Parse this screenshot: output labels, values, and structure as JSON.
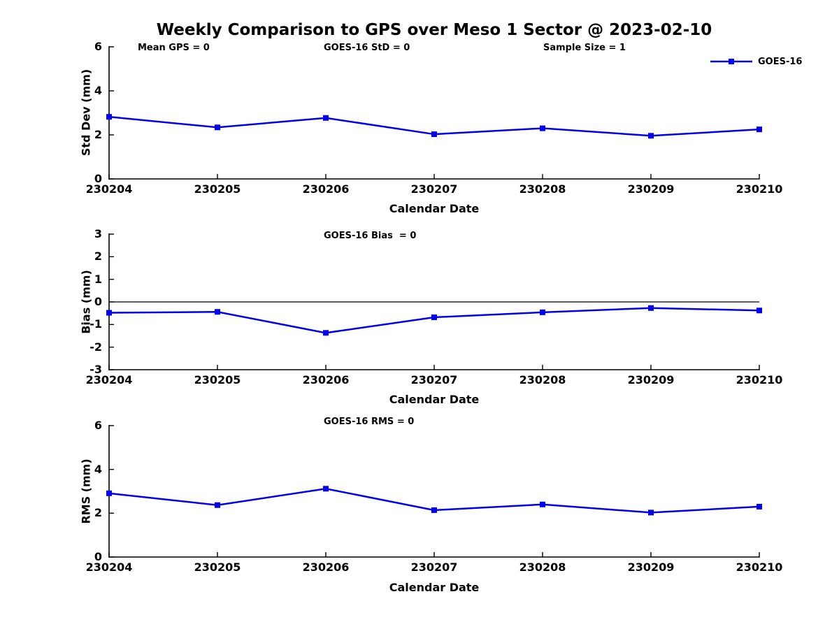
{
  "title": "Weekly Comparison to GPS over Meso 1 Sector @ 2023-02-10",
  "legend": {
    "label": "GOES-16"
  },
  "series_color": "#0000ee",
  "axis_color": "#000000",
  "chart_data": [
    {
      "type": "line",
      "ylabel": "Std Dev (mm)",
      "xlabel": "Calendar Date",
      "categories": [
        "230204",
        "230205",
        "230206",
        "230207",
        "230208",
        "230209",
        "230210"
      ],
      "series": [
        {
          "name": "GOES-16",
          "values": [
            2.82,
            2.34,
            2.77,
            2.03,
            2.3,
            1.96,
            2.25
          ]
        }
      ],
      "ylim": [
        0,
        6
      ],
      "yticks": [
        0,
        2,
        4,
        6
      ],
      "grid": false,
      "zero_line": false,
      "legend_position": "top-right",
      "annotations": [
        "Mean GPS = 0",
        "GOES-16 StD = 0",
        "Sample Size = 1"
      ]
    },
    {
      "type": "line",
      "ylabel": "Bias (mm)",
      "xlabel": "Calendar Date",
      "categories": [
        "230204",
        "230205",
        "230206",
        "230207",
        "230208",
        "230209",
        "230210"
      ],
      "series": [
        {
          "name": "GOES-16",
          "values": [
            -0.48,
            -0.44,
            -1.37,
            -0.68,
            -0.46,
            -0.27,
            -0.38
          ]
        }
      ],
      "ylim": [
        -3,
        3
      ],
      "yticks": [
        -3,
        -2,
        -1,
        0,
        1,
        2,
        3
      ],
      "grid": false,
      "zero_line": true,
      "legend_position": "none",
      "annotations": [
        "GOES-16 Bias  = 0"
      ]
    },
    {
      "type": "line",
      "ylabel": "RMS (mm)",
      "xlabel": "Calendar Date",
      "categories": [
        "230204",
        "230205",
        "230206",
        "230207",
        "230208",
        "230209",
        "230210"
      ],
      "series": [
        {
          "name": "GOES-16",
          "values": [
            2.91,
            2.37,
            3.12,
            2.14,
            2.4,
            2.03,
            2.3
          ]
        }
      ],
      "ylim": [
        0,
        6
      ],
      "yticks": [
        0,
        2,
        4,
        6
      ],
      "grid": false,
      "zero_line": false,
      "legend_position": "none",
      "annotations": [
        "GOES-16 RMS = 0"
      ]
    }
  ]
}
